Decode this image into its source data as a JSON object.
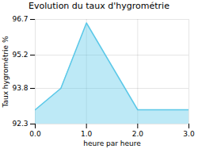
{
  "chart_data": {
    "type": "area",
    "title": "Evolution du taux d'hygrométrie",
    "xlabel": "heure par heure",
    "ylabel": "Taux hygrométrie %",
    "x": [
      0,
      0.5,
      1,
      2,
      2.0,
      3
    ],
    "values": [
      92.9,
      93.8,
      96.55,
      92.9,
      92.9,
      92.9
    ],
    "color": "#5bc8e8",
    "xlim": [
      0,
      3
    ],
    "ylim": [
      92.3,
      96.7
    ],
    "xticks": [
      0,
      1,
      2,
      3
    ],
    "yticks": [
      92.3,
      93.8,
      95.2,
      96.7
    ],
    "grid": true
  }
}
